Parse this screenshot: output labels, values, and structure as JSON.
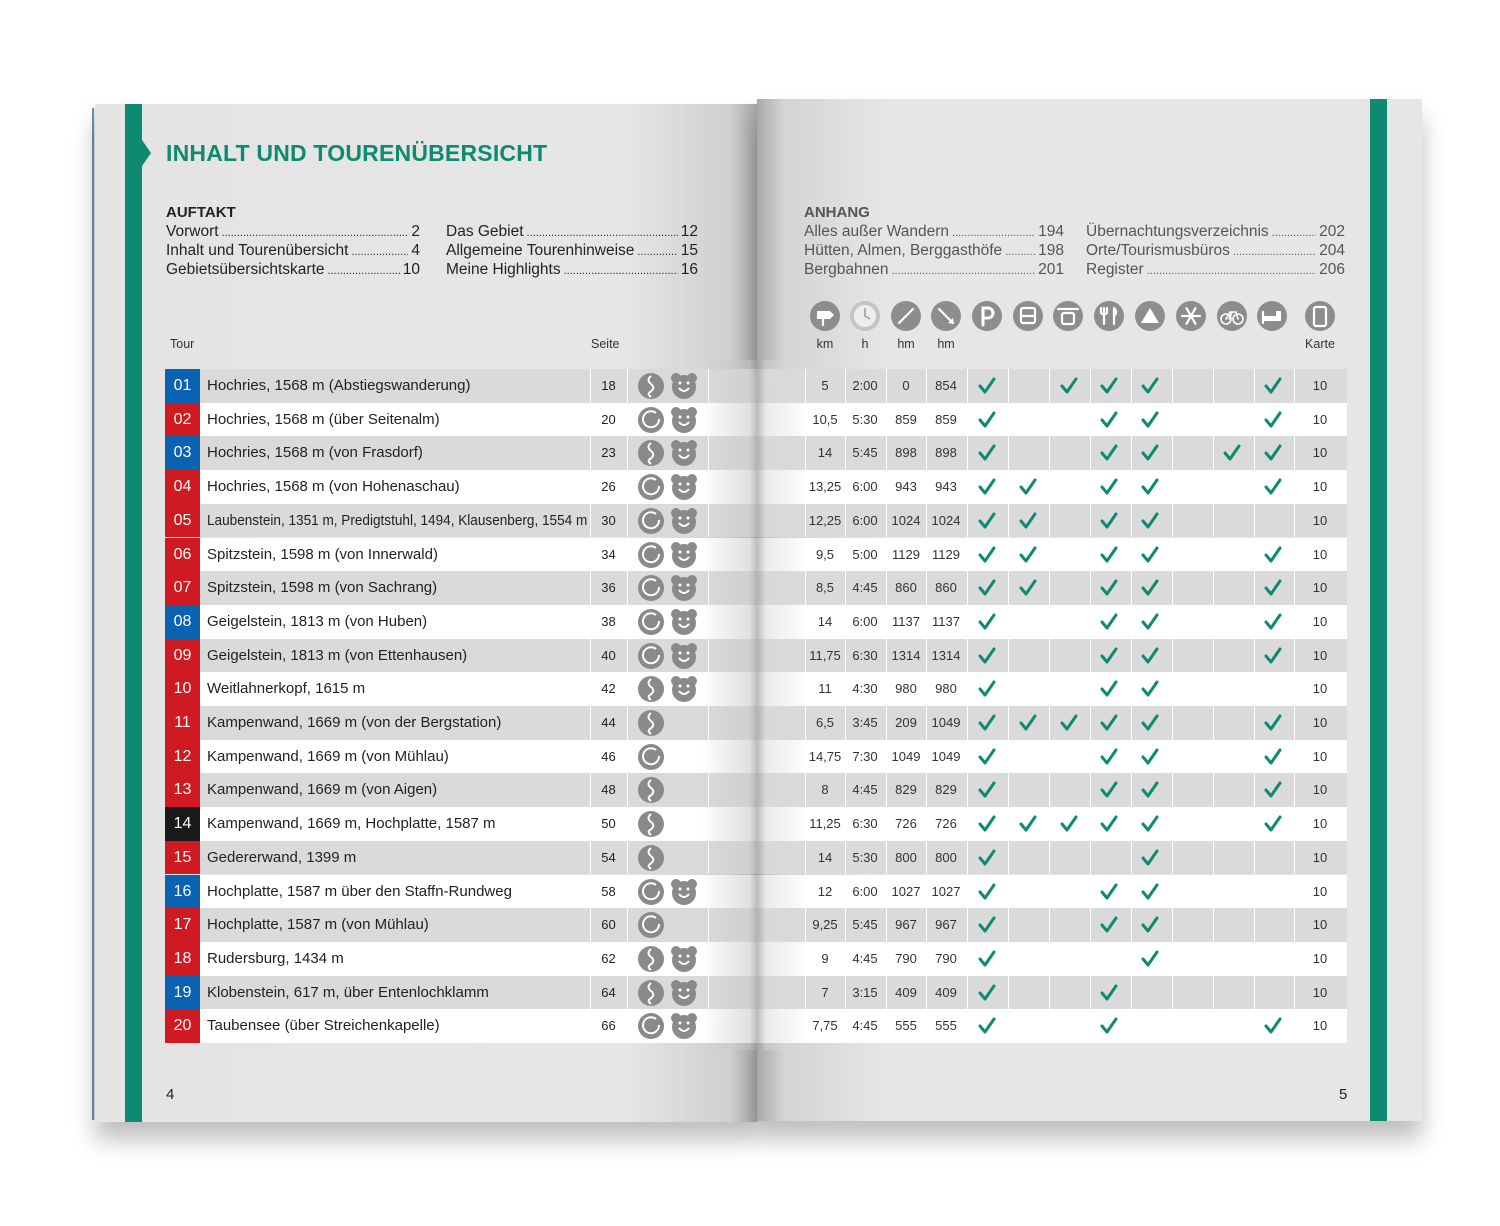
{
  "title": "INHALT UND TOURENÜBERSICHT",
  "toc_left": {
    "heading": "AUFTAKT",
    "columns": [
      [
        {
          "label": "Vorwort",
          "page": 2
        },
        {
          "label": "Inhalt und Tourenübersicht",
          "page": 4
        },
        {
          "label": "Gebietsübersichtskarte",
          "page": 10
        }
      ],
      [
        {
          "label": "Das Gebiet",
          "page": 12
        },
        {
          "label": "Allgemeine Tourenhinweise",
          "page": 15
        },
        {
          "label": "Meine Highlights",
          "page": 16
        }
      ]
    ]
  },
  "toc_right": {
    "heading": "ANHANG",
    "columns": [
      [
        {
          "label": "Alles außer Wandern",
          "page": 194
        },
        {
          "label": "Hütten, Almen, Berggasthöfe",
          "page": 198
        },
        {
          "label": "Bergbahnen",
          "page": 201
        }
      ],
      [
        {
          "label": "Übernachtungsverzeichnis",
          "page": 202
        },
        {
          "label": "Orte/Tourismusbüros",
          "page": 204
        },
        {
          "label": "Register",
          "page": 206
        }
      ]
    ]
  },
  "columns": {
    "tour": "Tour",
    "page": "Seite",
    "km": "km",
    "h": "h",
    "up": "hm",
    "down": "hm",
    "map": "Karte"
  },
  "check_color": "#0e8a72",
  "rows": [
    {
      "nr": "01",
      "color": "#0a63b0",
      "name": "Hochries, 1568 m (Abstiegswanderung)",
      "page": 18,
      "route": "linear",
      "kids": true,
      "km": "5",
      "h": "2:00",
      "up": 0,
      "down": 854,
      "checks": [
        true,
        false,
        true,
        true,
        true,
        false,
        false,
        true
      ],
      "map": 10
    },
    {
      "nr": "02",
      "color": "#cf1a22",
      "name": "Hochries, 1568 m (über Seitenalm)",
      "page": 20,
      "route": "loop",
      "kids": true,
      "km": "10,5",
      "h": "5:30",
      "up": 859,
      "down": 859,
      "checks": [
        true,
        false,
        false,
        true,
        true,
        false,
        false,
        true
      ],
      "map": 10
    },
    {
      "nr": "03",
      "color": "#0a63b0",
      "name": "Hochries, 1568 m (von Frasdorf)",
      "page": 23,
      "route": "linear",
      "kids": true,
      "km": "14",
      "h": "5:45",
      "up": 898,
      "down": 898,
      "checks": [
        true,
        false,
        false,
        true,
        true,
        false,
        true,
        true
      ],
      "map": 10
    },
    {
      "nr": "04",
      "color": "#cf1a22",
      "name": "Hochries, 1568 m (von Hohenaschau)",
      "page": 26,
      "route": "loop",
      "kids": true,
      "km": "13,25",
      "h": "6:00",
      "up": 943,
      "down": 943,
      "checks": [
        true,
        true,
        false,
        true,
        true,
        false,
        false,
        true
      ],
      "map": 10
    },
    {
      "nr": "05",
      "color": "#cf1a22",
      "name": "Laubenstein, 1351 m, Predigtstuhl, 1494, Klausenberg, 1554 m",
      "page": 30,
      "route": "loop",
      "kids": true,
      "km": "12,25",
      "h": "6:00",
      "up": 1024,
      "down": 1024,
      "checks": [
        true,
        true,
        false,
        true,
        true,
        false,
        false,
        false
      ],
      "map": 10
    },
    {
      "nr": "06",
      "color": "#cf1a22",
      "name": "Spitzstein, 1598 m (von Innerwald)",
      "page": 34,
      "route": "loop",
      "kids": true,
      "km": "9,5",
      "h": "5:00",
      "up": 1129,
      "down": 1129,
      "checks": [
        true,
        true,
        false,
        true,
        true,
        false,
        false,
        true
      ],
      "map": 10
    },
    {
      "nr": "07",
      "color": "#cf1a22",
      "name": "Spitzstein, 1598 m (von Sachrang)",
      "page": 36,
      "route": "loop",
      "kids": true,
      "km": "8,5",
      "h": "4:45",
      "up": 860,
      "down": 860,
      "checks": [
        true,
        true,
        false,
        true,
        true,
        false,
        false,
        true
      ],
      "map": 10
    },
    {
      "nr": "08",
      "color": "#0a63b0",
      "name": "Geigelstein, 1813 m (von Huben)",
      "page": 38,
      "route": "loop",
      "kids": true,
      "km": "14",
      "h": "6:00",
      "up": 1137,
      "down": 1137,
      "checks": [
        true,
        false,
        false,
        true,
        true,
        false,
        false,
        true
      ],
      "map": 10
    },
    {
      "nr": "09",
      "color": "#cf1a22",
      "name": "Geigelstein, 1813 m (von Ettenhausen)",
      "page": 40,
      "route": "loop",
      "kids": true,
      "km": "11,75",
      "h": "6:30",
      "up": 1314,
      "down": 1314,
      "checks": [
        true,
        false,
        false,
        true,
        true,
        false,
        false,
        true
      ],
      "map": 10
    },
    {
      "nr": "10",
      "color": "#cf1a22",
      "name": "Weitlahnerkopf, 1615 m",
      "page": 42,
      "route": "linear",
      "kids": true,
      "km": "11",
      "h": "4:30",
      "up": 980,
      "down": 980,
      "checks": [
        true,
        false,
        false,
        true,
        true,
        false,
        false,
        false
      ],
      "map": 10
    },
    {
      "nr": "11",
      "color": "#cf1a22",
      "name": "Kampenwand, 1669 m (von der Bergstation)",
      "page": 44,
      "route": "linear",
      "kids": false,
      "km": "6,5",
      "h": "3:45",
      "up": 209,
      "down": 1049,
      "checks": [
        true,
        true,
        true,
        true,
        true,
        false,
        false,
        true
      ],
      "map": 10
    },
    {
      "nr": "12",
      "color": "#cf1a22",
      "name": "Kampenwand, 1669 m (von Mühlau)",
      "page": 46,
      "route": "loop",
      "kids": false,
      "km": "14,75",
      "h": "7:30",
      "up": 1049,
      "down": 1049,
      "checks": [
        true,
        false,
        false,
        true,
        true,
        false,
        false,
        true
      ],
      "map": 10
    },
    {
      "nr": "13",
      "color": "#cf1a22",
      "name": "Kampenwand, 1669 m (von Aigen)",
      "page": 48,
      "route": "linear",
      "kids": false,
      "km": "8",
      "h": "4:45",
      "up": 829,
      "down": 829,
      "checks": [
        true,
        false,
        false,
        true,
        true,
        false,
        false,
        true
      ],
      "map": 10
    },
    {
      "nr": "14",
      "color": "#1a1a1a",
      "name": "Kampenwand, 1669 m, Hochplatte, 1587 m",
      "page": 50,
      "route": "linear",
      "kids": false,
      "km": "11,25",
      "h": "6:30",
      "up": 726,
      "down": 726,
      "checks": [
        true,
        true,
        true,
        true,
        true,
        false,
        false,
        true
      ],
      "map": 10
    },
    {
      "nr": "15",
      "color": "#cf1a22",
      "name": "Gedererwand, 1399 m",
      "page": 54,
      "route": "linear",
      "kids": false,
      "km": "14",
      "h": "5:30",
      "up": 800,
      "down": 800,
      "checks": [
        true,
        false,
        false,
        false,
        true,
        false,
        false,
        false
      ],
      "map": 10
    },
    {
      "nr": "16",
      "color": "#0a63b0",
      "name": "Hochplatte, 1587 m über den Staffn-Rundweg",
      "page": 58,
      "route": "loop",
      "kids": true,
      "km": "12",
      "h": "6:00",
      "up": 1027,
      "down": 1027,
      "checks": [
        true,
        false,
        false,
        true,
        true,
        false,
        false,
        false
      ],
      "map": 10
    },
    {
      "nr": "17",
      "color": "#cf1a22",
      "name": "Hochplatte, 1587 m (von Mühlau)",
      "page": 60,
      "route": "loop",
      "kids": false,
      "km": "9,25",
      "h": "5:45",
      "up": 967,
      "down": 967,
      "checks": [
        true,
        false,
        false,
        true,
        true,
        false,
        false,
        false
      ],
      "map": 10
    },
    {
      "nr": "18",
      "color": "#cf1a22",
      "name": "Rudersburg, 1434 m",
      "page": 62,
      "route": "linear",
      "kids": true,
      "km": "9",
      "h": "4:45",
      "up": 790,
      "down": 790,
      "checks": [
        true,
        false,
        false,
        false,
        true,
        false,
        false,
        false
      ],
      "map": 10
    },
    {
      "nr": "19",
      "color": "#0a63b0",
      "name": "Klobenstein, 617 m, über Entenlochklamm",
      "page": 64,
      "route": "linear",
      "kids": true,
      "km": "7",
      "h": "3:15",
      "up": 409,
      "down": 409,
      "checks": [
        true,
        false,
        false,
        true,
        false,
        false,
        false,
        false
      ],
      "map": 10
    },
    {
      "nr": "20",
      "color": "#cf1a22",
      "name": "Taubensee (über Streichenkapelle)",
      "page": 66,
      "route": "loop",
      "kids": true,
      "km": "7,75",
      "h": "4:45",
      "up": 555,
      "down": 555,
      "checks": [
        true,
        false,
        false,
        true,
        false,
        false,
        false,
        true
      ],
      "map": 10
    }
  ],
  "page_numbers": {
    "left": 4,
    "right": 5
  }
}
